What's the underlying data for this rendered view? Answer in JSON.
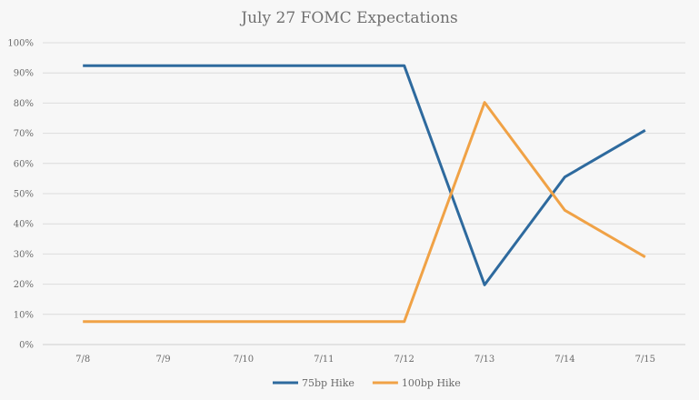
{
  "chart_data": {
    "type": "line",
    "title": "July 27 FOMC Expectations",
    "categories": [
      "7/8",
      "7/9",
      "7/10",
      "7/11",
      "7/12",
      "7/13",
      "7/14",
      "7/15"
    ],
    "ylim": [
      0,
      100
    ],
    "yticks": [
      "0%",
      "10%",
      "20%",
      "30%",
      "40%",
      "50%",
      "60%",
      "70%",
      "80%",
      "90%",
      "100%"
    ],
    "grid": true,
    "legend_position": "bottom",
    "series": [
      {
        "name": "75bp Hike",
        "color": "#2e6a9e",
        "values": [
          92.4,
          92.4,
          92.4,
          92.4,
          92.4,
          19.8,
          55.5,
          71.0
        ]
      },
      {
        "name": "100bp Hike",
        "color": "#f0a246",
        "values": [
          7.6,
          7.6,
          7.6,
          7.6,
          7.6,
          80.2,
          44.5,
          29.0
        ]
      }
    ]
  }
}
